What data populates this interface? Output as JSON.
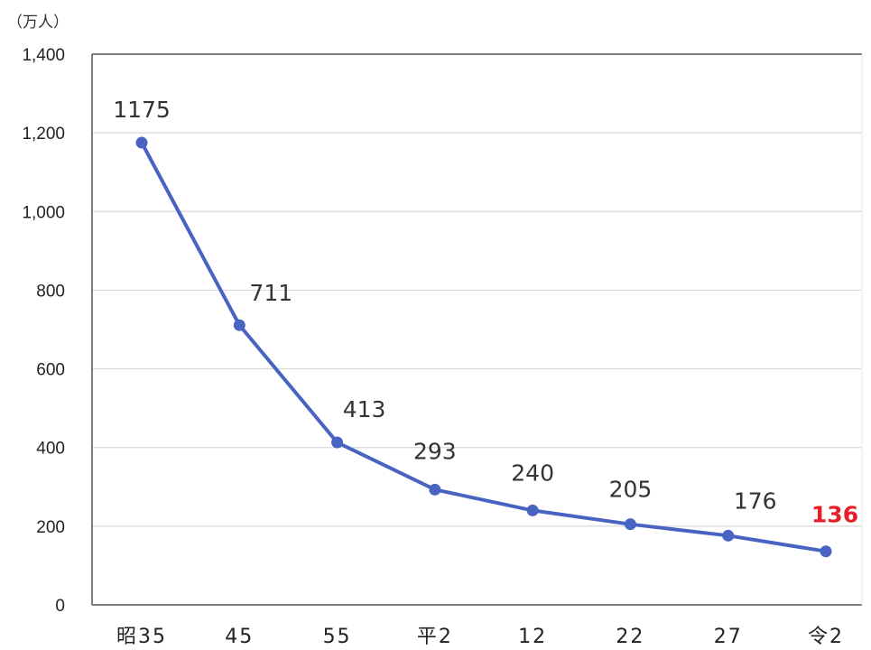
{
  "chart_data": {
    "type": "line",
    "unit_label": "（万人）",
    "categories": [
      "昭35",
      "45",
      "55",
      "平2",
      "12",
      "22",
      "27",
      "令2"
    ],
    "series": [
      {
        "values": [
          1175,
          711,
          413,
          293,
          240,
          205,
          176,
          136
        ]
      }
    ],
    "data_labels": [
      "1175",
      "711",
      "413",
      "293",
      "240",
      "205",
      "176",
      "136"
    ],
    "highlight_index": 7,
    "ylim": [
      0,
      1400
    ],
    "yticks": [
      0,
      200,
      400,
      600,
      800,
      1000,
      1200,
      1400
    ],
    "ytick_labels": [
      "0",
      "200",
      "400",
      "600",
      "800",
      "1,000",
      "1,200",
      "1,400"
    ],
    "grid": true,
    "colors": {
      "line": "#4863c2",
      "marker": "#4863c2",
      "highlight_label": "#e6202a",
      "grid": "#d9d9d9",
      "axis": "#555555"
    }
  }
}
